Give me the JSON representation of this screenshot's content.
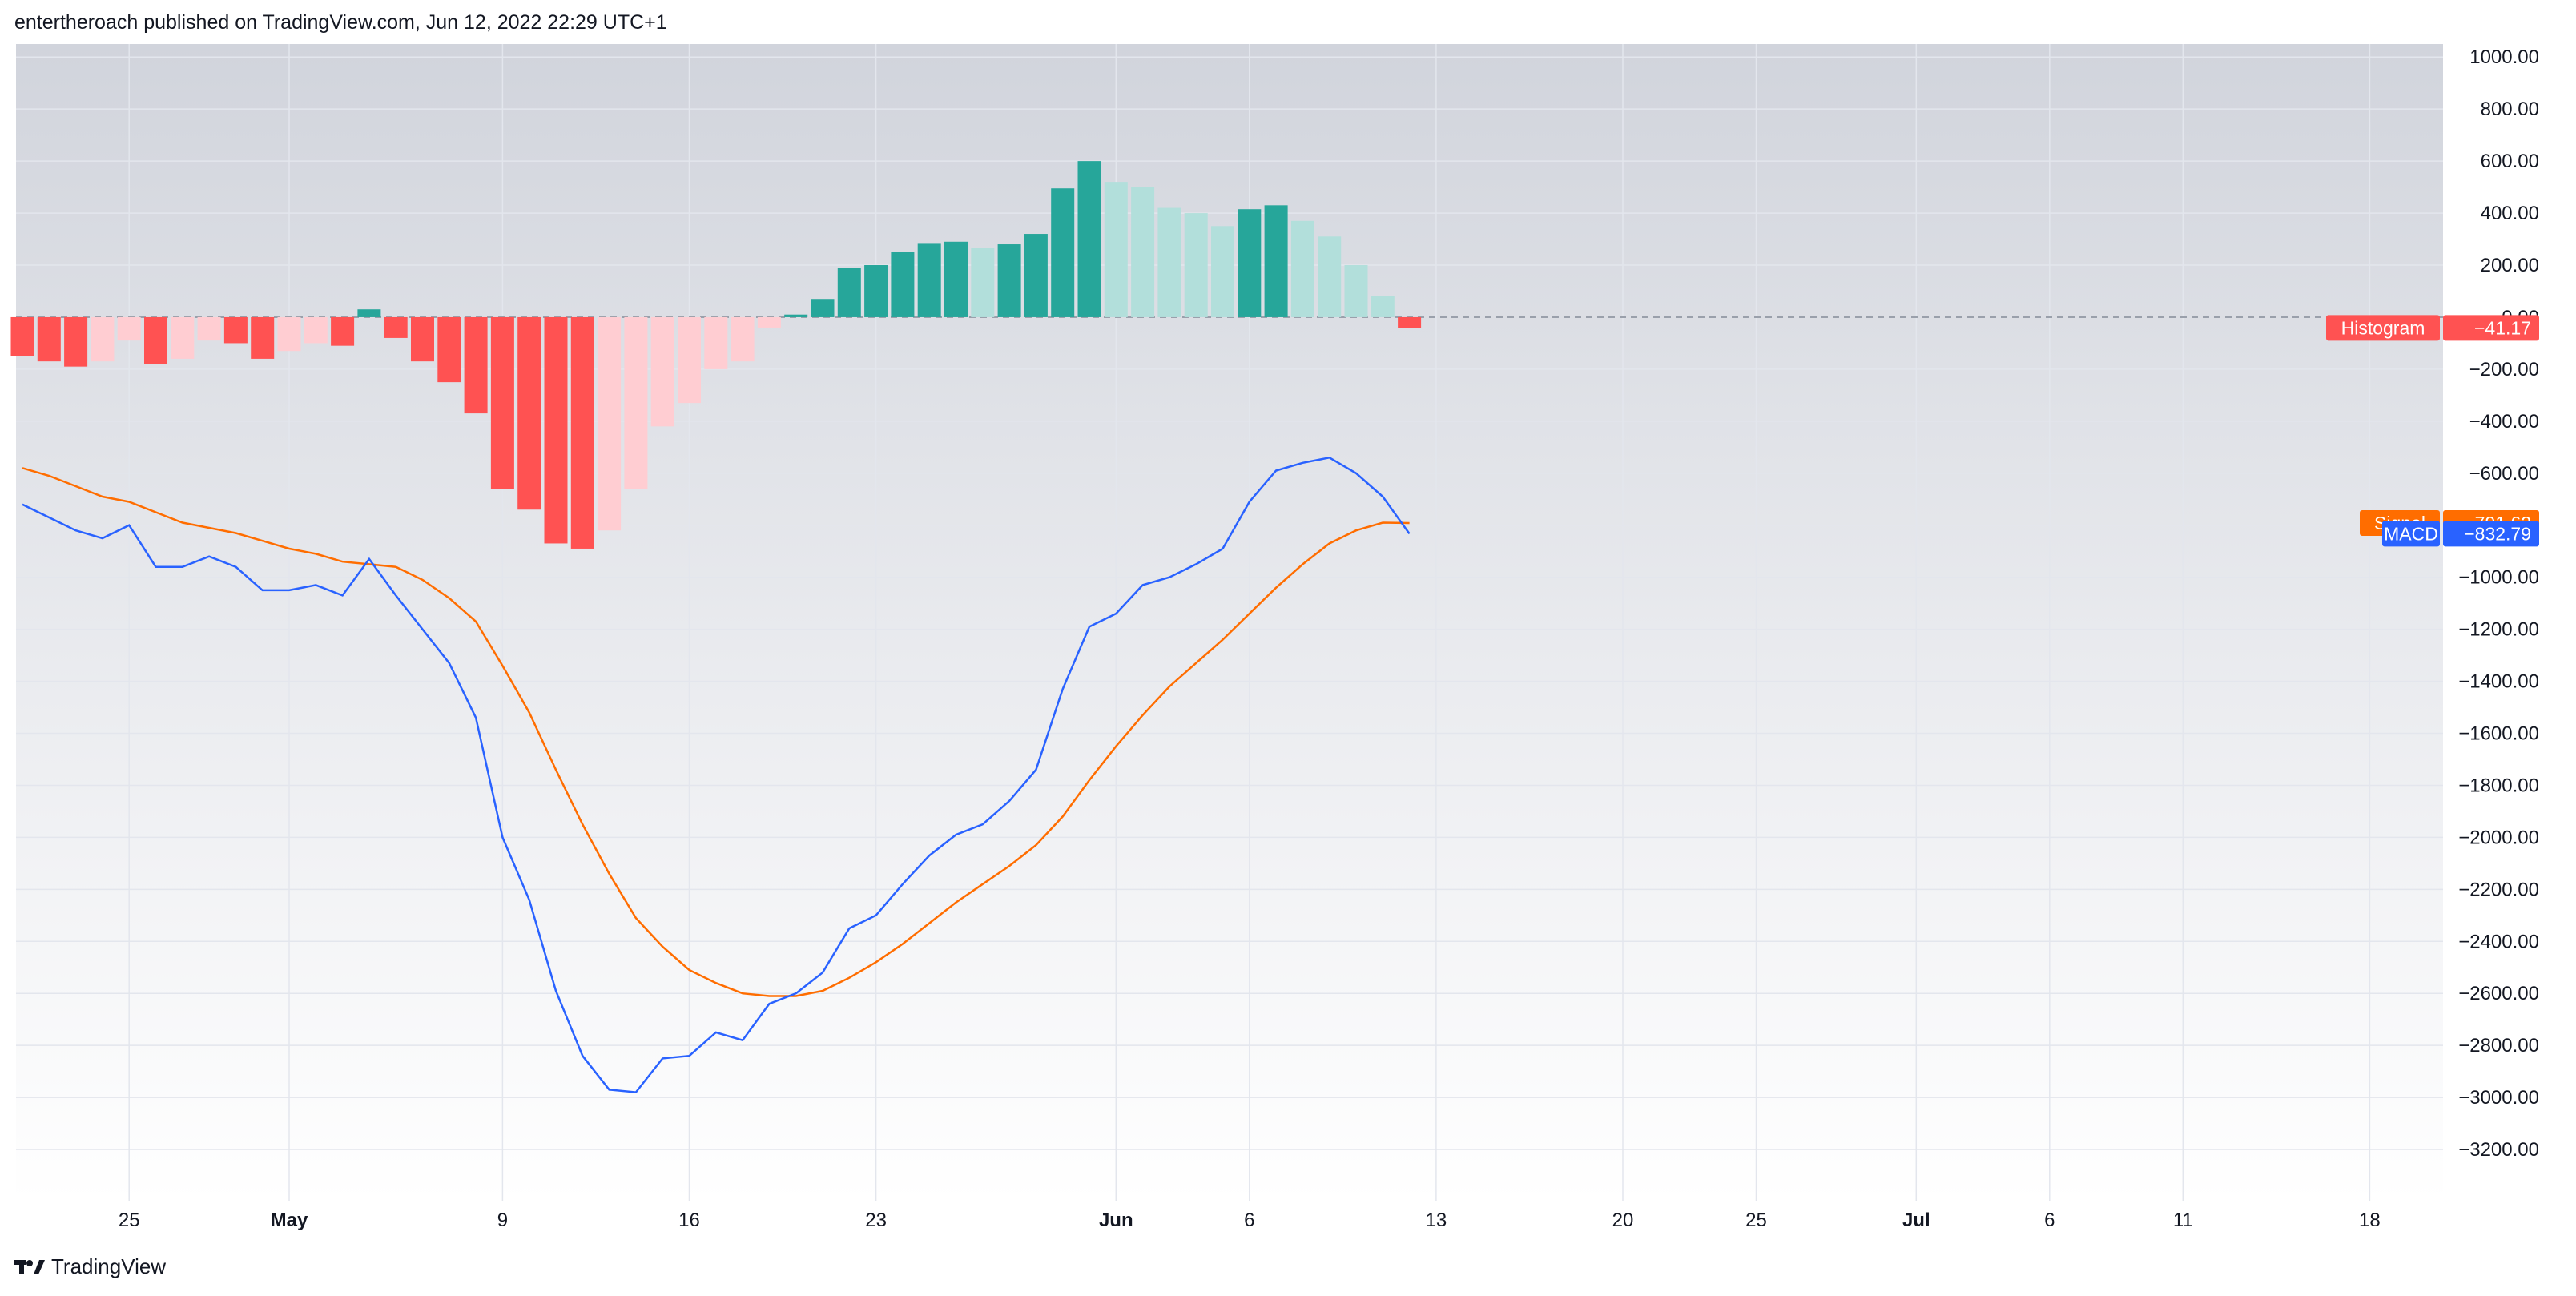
{
  "attribution": "entertheroach published on TradingView.com, Jun 12, 2022 22:29 UTC+1",
  "brand": "TradingView",
  "colors": {
    "histo_pos_strong": "#26a69a",
    "histo_pos_weak": "#b2dfdb",
    "histo_neg_strong": "#ff5252",
    "histo_neg_weak": "#ffcdd2",
    "macd": "#2962ff",
    "signal": "#ff6d00",
    "grid": "#e3e6ed",
    "zero_line": "#9aa0ab"
  },
  "chart_data": {
    "type": "bar",
    "ylim": [
      -3400,
      1050
    ],
    "y_ticks": [
      1000,
      800,
      600,
      400,
      200,
      0,
      -200,
      -400,
      -600,
      -800,
      -1000,
      -1200,
      -1400,
      -1600,
      -1800,
      -2000,
      -2200,
      -2400,
      -2600,
      -2800,
      -3000,
      -3200
    ],
    "y_tick_labels": [
      "1000.00",
      "800.00",
      "600.00",
      "400.00",
      "200.00",
      "0.00",
      "−200.00",
      "−400.00",
      "−600.00",
      "−800.00",
      "−1000.00",
      "−1200.00",
      "−1400.00",
      "−1600.00",
      "−1800.00",
      "−2000.00",
      "−2200.00",
      "−2400.00",
      "−2600.00",
      "−2800.00",
      "−3000.00",
      "−3200.00"
    ],
    "x_ticks": [
      {
        "label": "25",
        "bold": false,
        "day": 4
      },
      {
        "label": "May",
        "bold": true,
        "day": 10
      },
      {
        "label": "9",
        "bold": false,
        "day": 18
      },
      {
        "label": "16",
        "bold": false,
        "day": 25
      },
      {
        "label": "23",
        "bold": false,
        "day": 32
      },
      {
        "label": "Jun",
        "bold": true,
        "day": 41
      },
      {
        "label": "6",
        "bold": false,
        "day": 46
      },
      {
        "label": "13",
        "bold": false,
        "day": 53
      },
      {
        "label": "20",
        "bold": false,
        "day": 60
      },
      {
        "label": "25",
        "bold": false,
        "day": 65
      },
      {
        "label": "Jul",
        "bold": true,
        "day": 71
      },
      {
        "label": "6",
        "bold": false,
        "day": 76
      },
      {
        "label": "11",
        "bold": false,
        "day": 81
      },
      {
        "label": "18",
        "bold": false,
        "day": 88
      }
    ],
    "histogram": [
      -150,
      -170,
      -190,
      -170,
      -90,
      -180,
      -160,
      -90,
      -100,
      -160,
      -130,
      -100,
      -110,
      30,
      -80,
      -170,
      -250,
      -370,
      -660,
      -740,
      -870,
      -890,
      -820,
      -660,
      -420,
      -330,
      -200,
      -170,
      -40,
      10,
      70,
      190,
      200,
      250,
      285,
      290,
      265,
      280,
      320,
      495,
      600,
      520,
      500,
      420,
      400,
      350,
      415,
      430,
      370,
      310,
      200,
      80,
      -41.17
    ],
    "macd": [
      -720,
      -770,
      -820,
      -850,
      -800,
      -960,
      -960,
      -920,
      -960,
      -1050,
      -1050,
      -1030,
      -1070,
      -930,
      -1070,
      -1200,
      -1330,
      -1540,
      -2000,
      -2240,
      -2590,
      -2840,
      -2970,
      -2980,
      -2850,
      -2840,
      -2750,
      -2780,
      -2640,
      -2600,
      -2520,
      -2350,
      -2300,
      -2180,
      -2070,
      -1990,
      -1950,
      -1860,
      -1740,
      -1430,
      -1190,
      -1140,
      -1030,
      -1000,
      -950,
      -890,
      -710,
      -590,
      -560,
      -540,
      -600,
      -690,
      -832.79
    ],
    "signal": [
      -580,
      -610,
      -650,
      -690,
      -710,
      -750,
      -790,
      -810,
      -830,
      -860,
      -890,
      -910,
      -940,
      -950,
      -960,
      -1010,
      -1080,
      -1170,
      -1340,
      -1520,
      -1740,
      -1950,
      -2140,
      -2310,
      -2420,
      -2510,
      -2560,
      -2600,
      -2610,
      -2610,
      -2590,
      -2540,
      -2480,
      -2410,
      -2330,
      -2250,
      -2180,
      -2110,
      -2030,
      -1920,
      -1780,
      -1650,
      -1530,
      -1420,
      -1330,
      -1240,
      -1140,
      -1040,
      -950,
      -870,
      -820,
      -790,
      -791.62
    ],
    "badges": {
      "histogram": {
        "name": "Histogram",
        "value": "−41.17"
      },
      "signal": {
        "name": "Signal",
        "value": "−791.62"
      },
      "macd": {
        "name": "MACD",
        "value": "−832.79"
      }
    }
  }
}
